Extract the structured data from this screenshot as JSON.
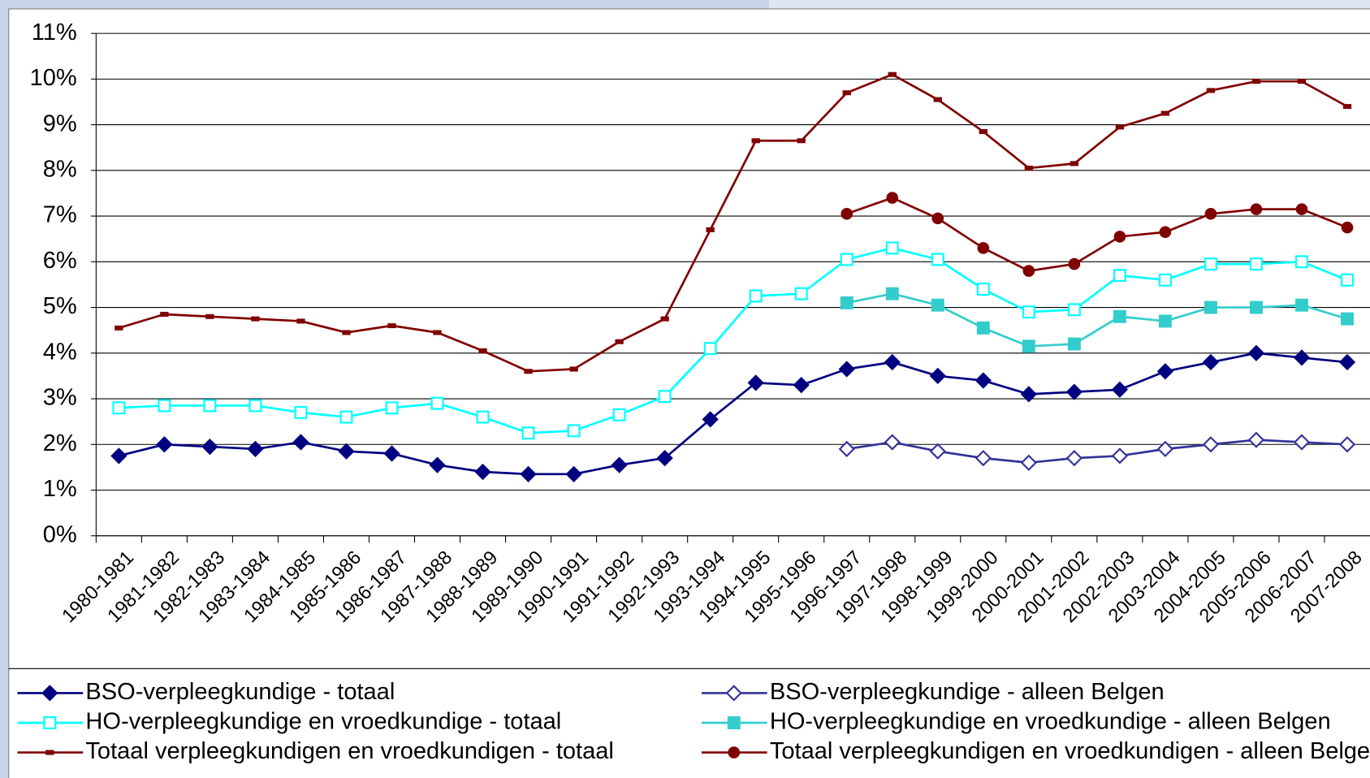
{
  "chart_data": {
    "type": "line",
    "categories": [
      "1980-1981",
      "1981-1982",
      "1982-1983",
      "1983-1984",
      "1984-1985",
      "1985-1986",
      "1986-1987",
      "1987-1988",
      "1988-1989",
      "1989-1990",
      "1990-1991",
      "1991-1992",
      "1992-1993",
      "1993-1994",
      "1994-1995",
      "1995-1996",
      "1996-1997",
      "1997-1998",
      "1998-1999",
      "1999-2000",
      "2000-2001",
      "2001-2002",
      "2002-2003",
      "2003-2004",
      "2004-2005",
      "2005-2006",
      "2006-2007",
      "2007-2008"
    ],
    "ylim": [
      0,
      11
    ],
    "yticks": [
      {
        "value": 0,
        "label": "0%"
      },
      {
        "value": 1,
        "label": "1%"
      },
      {
        "value": 2,
        "label": "2%"
      },
      {
        "value": 3,
        "label": "3%"
      },
      {
        "value": 4,
        "label": "4%"
      },
      {
        "value": 5,
        "label": "5%"
      },
      {
        "value": 6,
        "label": "6%"
      },
      {
        "value": 7,
        "label": "7%"
      },
      {
        "value": 8,
        "label": "8%"
      },
      {
        "value": 9,
        "label": "9%"
      },
      {
        "value": 10,
        "label": "10%"
      },
      {
        "value": 11,
        "label": "11%"
      }
    ],
    "grid": true,
    "legend": "bottom",
    "series": [
      {
        "name": "BSO-verpleegkundige - totaal",
        "color": "#000080",
        "marker": "diamond",
        "values": [
          1.75,
          2.0,
          1.95,
          1.9,
          2.05,
          1.85,
          1.8,
          1.55,
          1.4,
          1.35,
          1.35,
          1.55,
          1.7,
          2.55,
          3.35,
          3.3,
          3.65,
          3.8,
          3.5,
          3.4,
          3.1,
          3.15,
          3.2,
          3.6,
          3.8,
          4.0,
          3.9,
          3.8
        ]
      },
      {
        "name": "BSO-verpleegkundige - alleen Belgen",
        "color": "#333399",
        "marker": "diamond-open",
        "values": [
          null,
          null,
          null,
          null,
          null,
          null,
          null,
          null,
          null,
          null,
          null,
          null,
          null,
          null,
          null,
          null,
          1.9,
          2.05,
          1.85,
          1.7,
          1.6,
          1.7,
          1.75,
          1.9,
          2.0,
          2.1,
          2.05,
          2.0
        ]
      },
      {
        "name": "HO-verpleegkundige en vroedkundige - totaal",
        "color": "#00ffff",
        "marker": "square-open",
        "values": [
          2.8,
          2.85,
          2.85,
          2.85,
          2.7,
          2.6,
          2.8,
          2.9,
          2.6,
          2.25,
          2.3,
          2.65,
          3.05,
          4.1,
          5.25,
          5.3,
          6.05,
          6.3,
          6.05,
          5.4,
          4.9,
          4.95,
          5.7,
          5.6,
          5.95,
          5.95,
          6.0,
          5.6
        ]
      },
      {
        "name": "HO-verpleegkundige en vroedkundige - alleen Belgen",
        "color": "#33cccc",
        "marker": "square",
        "values": [
          null,
          null,
          null,
          null,
          null,
          null,
          null,
          null,
          null,
          null,
          null,
          null,
          null,
          null,
          null,
          null,
          5.1,
          5.3,
          5.05,
          4.55,
          4.15,
          4.2,
          4.8,
          4.7,
          5.0,
          5.0,
          5.05,
          4.75
        ]
      },
      {
        "name": "Totaal verpleegkundigen en vroedkundigen - totaal",
        "color": "#800000",
        "marker": "dash",
        "values": [
          4.55,
          4.85,
          4.8,
          4.75,
          4.7,
          4.45,
          4.6,
          4.45,
          4.05,
          3.6,
          3.65,
          4.25,
          4.75,
          6.7,
          8.65,
          8.65,
          9.7,
          10.1,
          9.55,
          8.85,
          8.05,
          8.15,
          8.95,
          9.25,
          9.75,
          9.95,
          9.95,
          9.4
        ]
      },
      {
        "name": "Totaal verpleegkundigen en vroedkundigen - alleen Belgen",
        "color": "#800000",
        "marker": "circle",
        "values": [
          null,
          null,
          null,
          null,
          null,
          null,
          null,
          null,
          null,
          null,
          null,
          null,
          null,
          null,
          null,
          null,
          7.05,
          7.4,
          6.95,
          6.3,
          5.8,
          5.95,
          6.55,
          6.65,
          7.05,
          7.15,
          7.15,
          6.75
        ]
      }
    ]
  }
}
